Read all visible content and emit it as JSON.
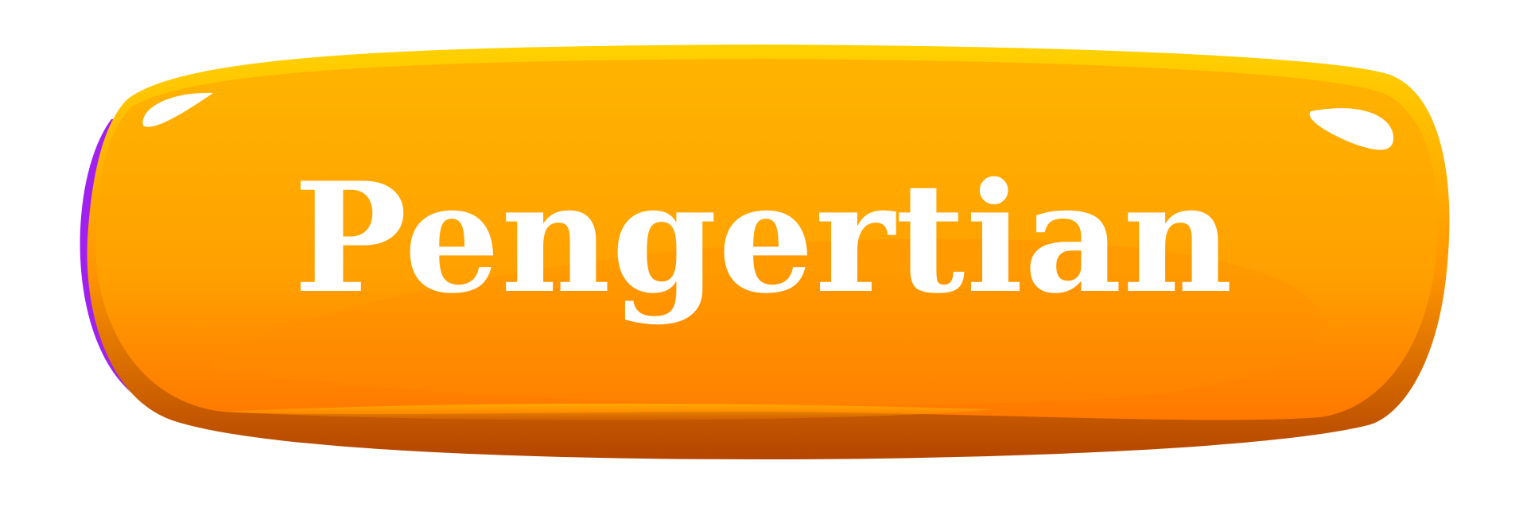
{
  "button": {
    "label": "Pengertian",
    "colors": {
      "top_rim": "#ffd000",
      "face_light": "#ffb300",
      "face_dark": "#ff7a00",
      "bottom_rim": "#b84800",
      "left_edge": "#a020f0",
      "highlight": "#ffffff",
      "text": "#ffffff"
    }
  }
}
